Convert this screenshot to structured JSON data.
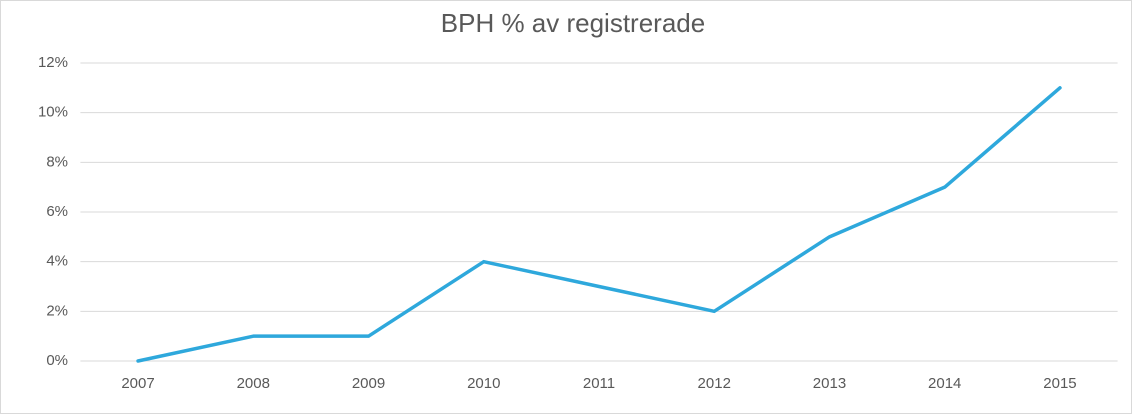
{
  "chart_data": {
    "type": "line",
    "title": "BPH % av registrerade",
    "categories": [
      "2007",
      "2008",
      "2009",
      "2010",
      "2011",
      "2012",
      "2013",
      "2014",
      "2015"
    ],
    "values": [
      0,
      1,
      1,
      4,
      3,
      2,
      5,
      7,
      11
    ],
    "color": "#2ea8dc",
    "ylim": [
      0,
      12
    ],
    "yticks": [
      {
        "value": 0,
        "label": "0%"
      },
      {
        "value": 2,
        "label": "2%"
      },
      {
        "value": 4,
        "label": "4%"
      },
      {
        "value": 6,
        "label": "6%"
      },
      {
        "value": 8,
        "label": "8%"
      },
      {
        "value": 10,
        "label": "10%"
      },
      {
        "value": 12,
        "label": "12%"
      }
    ],
    "grid": true
  }
}
